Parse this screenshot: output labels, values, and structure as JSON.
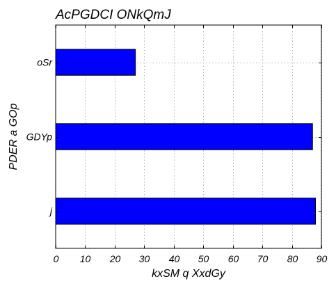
{
  "chart_data": {
    "type": "bar",
    "orientation": "horizontal",
    "title": "AcPGDCI ONkQmJ",
    "xlabel": "kxSM q XxdGy",
    "ylabel": "PDER a GOp",
    "categories": [
      "j",
      "GDYp",
      "oSr"
    ],
    "values": [
      88,
      87,
      27
    ],
    "xlim": [
      0,
      90
    ],
    "xticks": [
      0,
      10,
      20,
      30,
      40,
      50,
      60,
      70,
      80,
      90
    ],
    "grid": true,
    "bar_color": "#0000ff",
    "bar_edge_color": "#000000"
  }
}
